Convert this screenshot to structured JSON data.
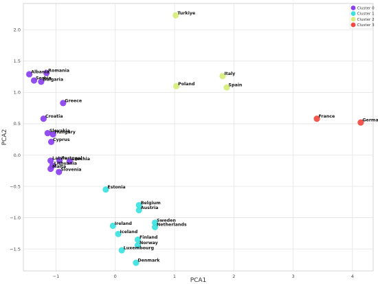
{
  "chart_data": {
    "type": "scatter",
    "xlabel": "PCA1",
    "ylabel": "PCA2",
    "xlim": [
      -1.55,
      4.35
    ],
    "ylim": [
      -1.85,
      2.42
    ],
    "x_ticks": [
      -1,
      0,
      1,
      2,
      3,
      4
    ],
    "x_tick_labels": [
      "−1",
      "0",
      "1",
      "2",
      "3",
      "4"
    ],
    "y_ticks": [
      -1.5,
      -1.0,
      -0.5,
      0.0,
      0.5,
      1.0,
      1.5,
      2.0
    ],
    "y_tick_labels": [
      "−1.5",
      "−1.0",
      "−0.5",
      "0.0",
      "0.5",
      "1.0",
      "1.5",
      "2.0"
    ],
    "grid": true,
    "legend_position": "top-right",
    "series": [
      {
        "name": "Cluster 0",
        "color": "#8a3ff0",
        "points": [
          {
            "label": "Albania",
            "x": -1.45,
            "y": 1.29
          },
          {
            "label": "Romania",
            "x": -1.16,
            "y": 1.31
          },
          {
            "label": "Serbia",
            "x": -1.37,
            "y": 1.19
          },
          {
            "label": "Bulgaria",
            "x": -1.25,
            "y": 1.17
          },
          {
            "label": "Greece",
            "x": -0.88,
            "y": 0.83
          },
          {
            "label": "Croatia",
            "x": -1.21,
            "y": 0.58
          },
          {
            "label": "Slovakia",
            "x": -1.14,
            "y": 0.35
          },
          {
            "label": "Hungary",
            "x": -1.05,
            "y": 0.33
          },
          {
            "label": "Cyprus",
            "x": -1.08,
            "y": 0.21
          },
          {
            "label": "Portugal",
            "x": -0.94,
            "y": -0.09
          },
          {
            "label": "Latvia",
            "x": -1.09,
            "y": -0.09
          },
          {
            "label": "Czechia",
            "x": -0.77,
            "y": -0.1
          },
          {
            "label": "Lithuania",
            "x": -1.06,
            "y": -0.17
          },
          {
            "label": "Malta",
            "x": -1.09,
            "y": -0.22
          },
          {
            "label": "Slovenia",
            "x": -0.95,
            "y": -0.27
          }
        ]
      },
      {
        "name": "Cluster 1",
        "color": "#3de2e0",
        "points": [
          {
            "label": "Estonia",
            "x": -0.16,
            "y": -0.55
          },
          {
            "label": "Belgium",
            "x": 0.4,
            "y": -0.8
          },
          {
            "label": "Austria",
            "x": 0.4,
            "y": -0.88
          },
          {
            "label": "Sweden",
            "x": 0.67,
            "y": -1.08
          },
          {
            "label": "Netherlands",
            "x": 0.67,
            "y": -1.15
          },
          {
            "label": "Ireland",
            "x": -0.04,
            "y": -1.13
          },
          {
            "label": "Iceland",
            "x": 0.05,
            "y": -1.26
          },
          {
            "label": "Finland",
            "x": 0.38,
            "y": -1.35
          },
          {
            "label": "Norway",
            "x": 0.38,
            "y": -1.44
          },
          {
            "label": "Luxembourg",
            "x": 0.11,
            "y": -1.52
          },
          {
            "label": "Denmark",
            "x": 0.35,
            "y": -1.72
          }
        ]
      },
      {
        "name": "Cluster 2",
        "color": "#d6ed7a",
        "points": [
          {
            "label": "Turkiye",
            "x": 1.02,
            "y": 2.23
          },
          {
            "label": "Italy",
            "x": 1.81,
            "y": 1.26
          },
          {
            "label": "Poland",
            "x": 1.03,
            "y": 1.1
          },
          {
            "label": "Spain",
            "x": 1.88,
            "y": 1.08
          }
        ]
      },
      {
        "name": "Cluster 3",
        "color": "#f3493f",
        "points": [
          {
            "label": "France",
            "x": 3.4,
            "y": 0.58
          },
          {
            "label": "Germany",
            "x": 4.14,
            "y": 0.52
          }
        ]
      }
    ]
  }
}
